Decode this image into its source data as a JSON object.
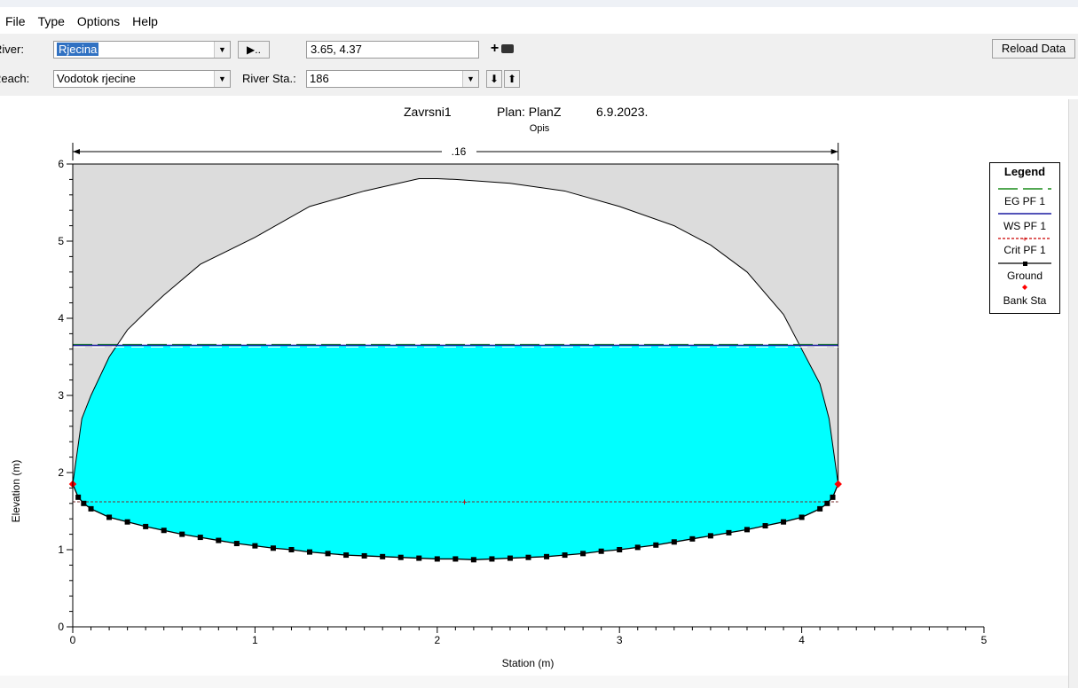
{
  "menu": [
    "File",
    "Type",
    "Options",
    "Help"
  ],
  "toolbar": {
    "river_label": "River:",
    "river_value": "Rjecina",
    "reach_label": "Reach:",
    "reach_value": "Vodotok rjecine",
    "coords": "3.65, 4.37",
    "river_sta_label": "River Sta.:",
    "river_sta_value": "186",
    "play_label": "▶..",
    "plus_label": "+",
    "down_label": "⬇",
    "up_label": "⬆",
    "reload_label": "Reload Data"
  },
  "chart_header": {
    "project": "Zavrsni1",
    "plan": "Plan: PlanZ",
    "date": "6.9.2023.",
    "subtitle": "Opis"
  },
  "legend": {
    "title": "Legend",
    "items": [
      "EG PF 1",
      "WS PF 1",
      "Crit PF 1",
      "Ground",
      "Bank Sta"
    ]
  },
  "colors": {
    "water": "#00ffff",
    "shade": "#dcdcdc",
    "eg": "#1a8c1a",
    "ws": "#1a1aa0",
    "crit": "#cc0000",
    "ground": "#000000",
    "bank": "#ff0000"
  },
  "chart_data": {
    "type": "line",
    "xlabel": "Station (m)",
    "ylabel": "Elevation (m)",
    "xlim": [
      0,
      5
    ],
    "ylim": [
      0,
      6
    ],
    "xticks": [
      "0",
      "1",
      "2",
      "3",
      "4",
      "5"
    ],
    "yticks": [
      "0",
      "1",
      "2",
      "3",
      "4",
      "5",
      "6"
    ],
    "manning_n": ".16",
    "water_surface": 3.65,
    "energy_grade": 3.66,
    "critical_depth": 1.62,
    "crit_marker_station": 2.15,
    "bank_stations": [
      {
        "x": 0.0,
        "y": 1.85
      },
      {
        "x": 4.2,
        "y": 1.85
      }
    ],
    "top_elevation": 6.0,
    "ground": {
      "x": [
        0.0,
        0.03,
        0.06,
        0.1,
        0.2,
        0.3,
        0.4,
        0.5,
        0.6,
        0.7,
        0.8,
        0.9,
        1.0,
        1.1,
        1.2,
        1.3,
        1.4,
        1.5,
        1.6,
        1.7,
        1.8,
        1.9,
        2.0,
        2.1,
        2.2,
        2.3,
        2.4,
        2.5,
        2.6,
        2.7,
        2.8,
        2.9,
        3.0,
        3.1,
        3.2,
        3.3,
        3.4,
        3.5,
        3.6,
        3.7,
        3.8,
        3.9,
        4.0,
        4.1,
        4.14,
        4.17,
        4.2
      ],
      "y": [
        1.85,
        1.68,
        1.6,
        1.53,
        1.42,
        1.36,
        1.3,
        1.25,
        1.2,
        1.16,
        1.12,
        1.08,
        1.05,
        1.02,
        1.0,
        0.97,
        0.95,
        0.93,
        0.92,
        0.91,
        0.9,
        0.89,
        0.88,
        0.88,
        0.87,
        0.88,
        0.89,
        0.9,
        0.91,
        0.93,
        0.95,
        0.98,
        1.0,
        1.03,
        1.06,
        1.1,
        1.14,
        1.18,
        1.22,
        1.26,
        1.31,
        1.36,
        1.42,
        1.53,
        1.6,
        1.68,
        1.85
      ]
    },
    "arch": {
      "x": [
        0.0,
        0.05,
        0.1,
        0.2,
        0.3,
        0.4,
        0.5,
        0.7,
        1.0,
        1.3,
        1.6,
        1.9,
        2.0,
        2.1,
        2.4,
        2.7,
        3.0,
        3.3,
        3.5,
        3.7,
        3.9,
        4.0,
        4.1,
        4.15,
        4.2
      ],
      "y": [
        1.85,
        2.7,
        3.0,
        3.5,
        3.85,
        4.08,
        4.3,
        4.7,
        5.05,
        5.45,
        5.65,
        5.81,
        5.81,
        5.8,
        5.75,
        5.65,
        5.45,
        5.2,
        4.95,
        4.6,
        4.05,
        3.6,
        3.15,
        2.7,
        1.85
      ]
    }
  }
}
